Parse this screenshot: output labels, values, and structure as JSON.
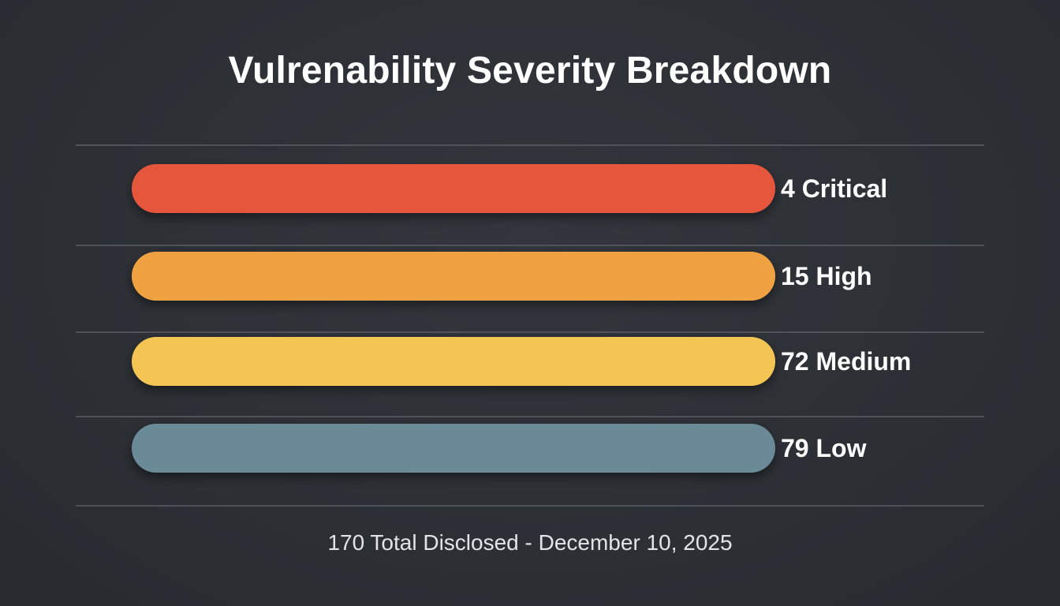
{
  "chart_data": {
    "type": "bar",
    "orientation": "horizontal",
    "title": "Vulrenability Severity Breakdown",
    "categories": [
      "Critical",
      "High",
      "Medium",
      "Low"
    ],
    "values": [
      4,
      15,
      72,
      79
    ],
    "labels": [
      "4 Critical",
      "15 High",
      "72 Medium",
      "79 Low"
    ],
    "colors": [
      "#e5573e",
      "#f0a242",
      "#f5c553",
      "#6b8a97"
    ],
    "grid": true,
    "footer": "170 Total Disclosed - December 10, 2025"
  }
}
